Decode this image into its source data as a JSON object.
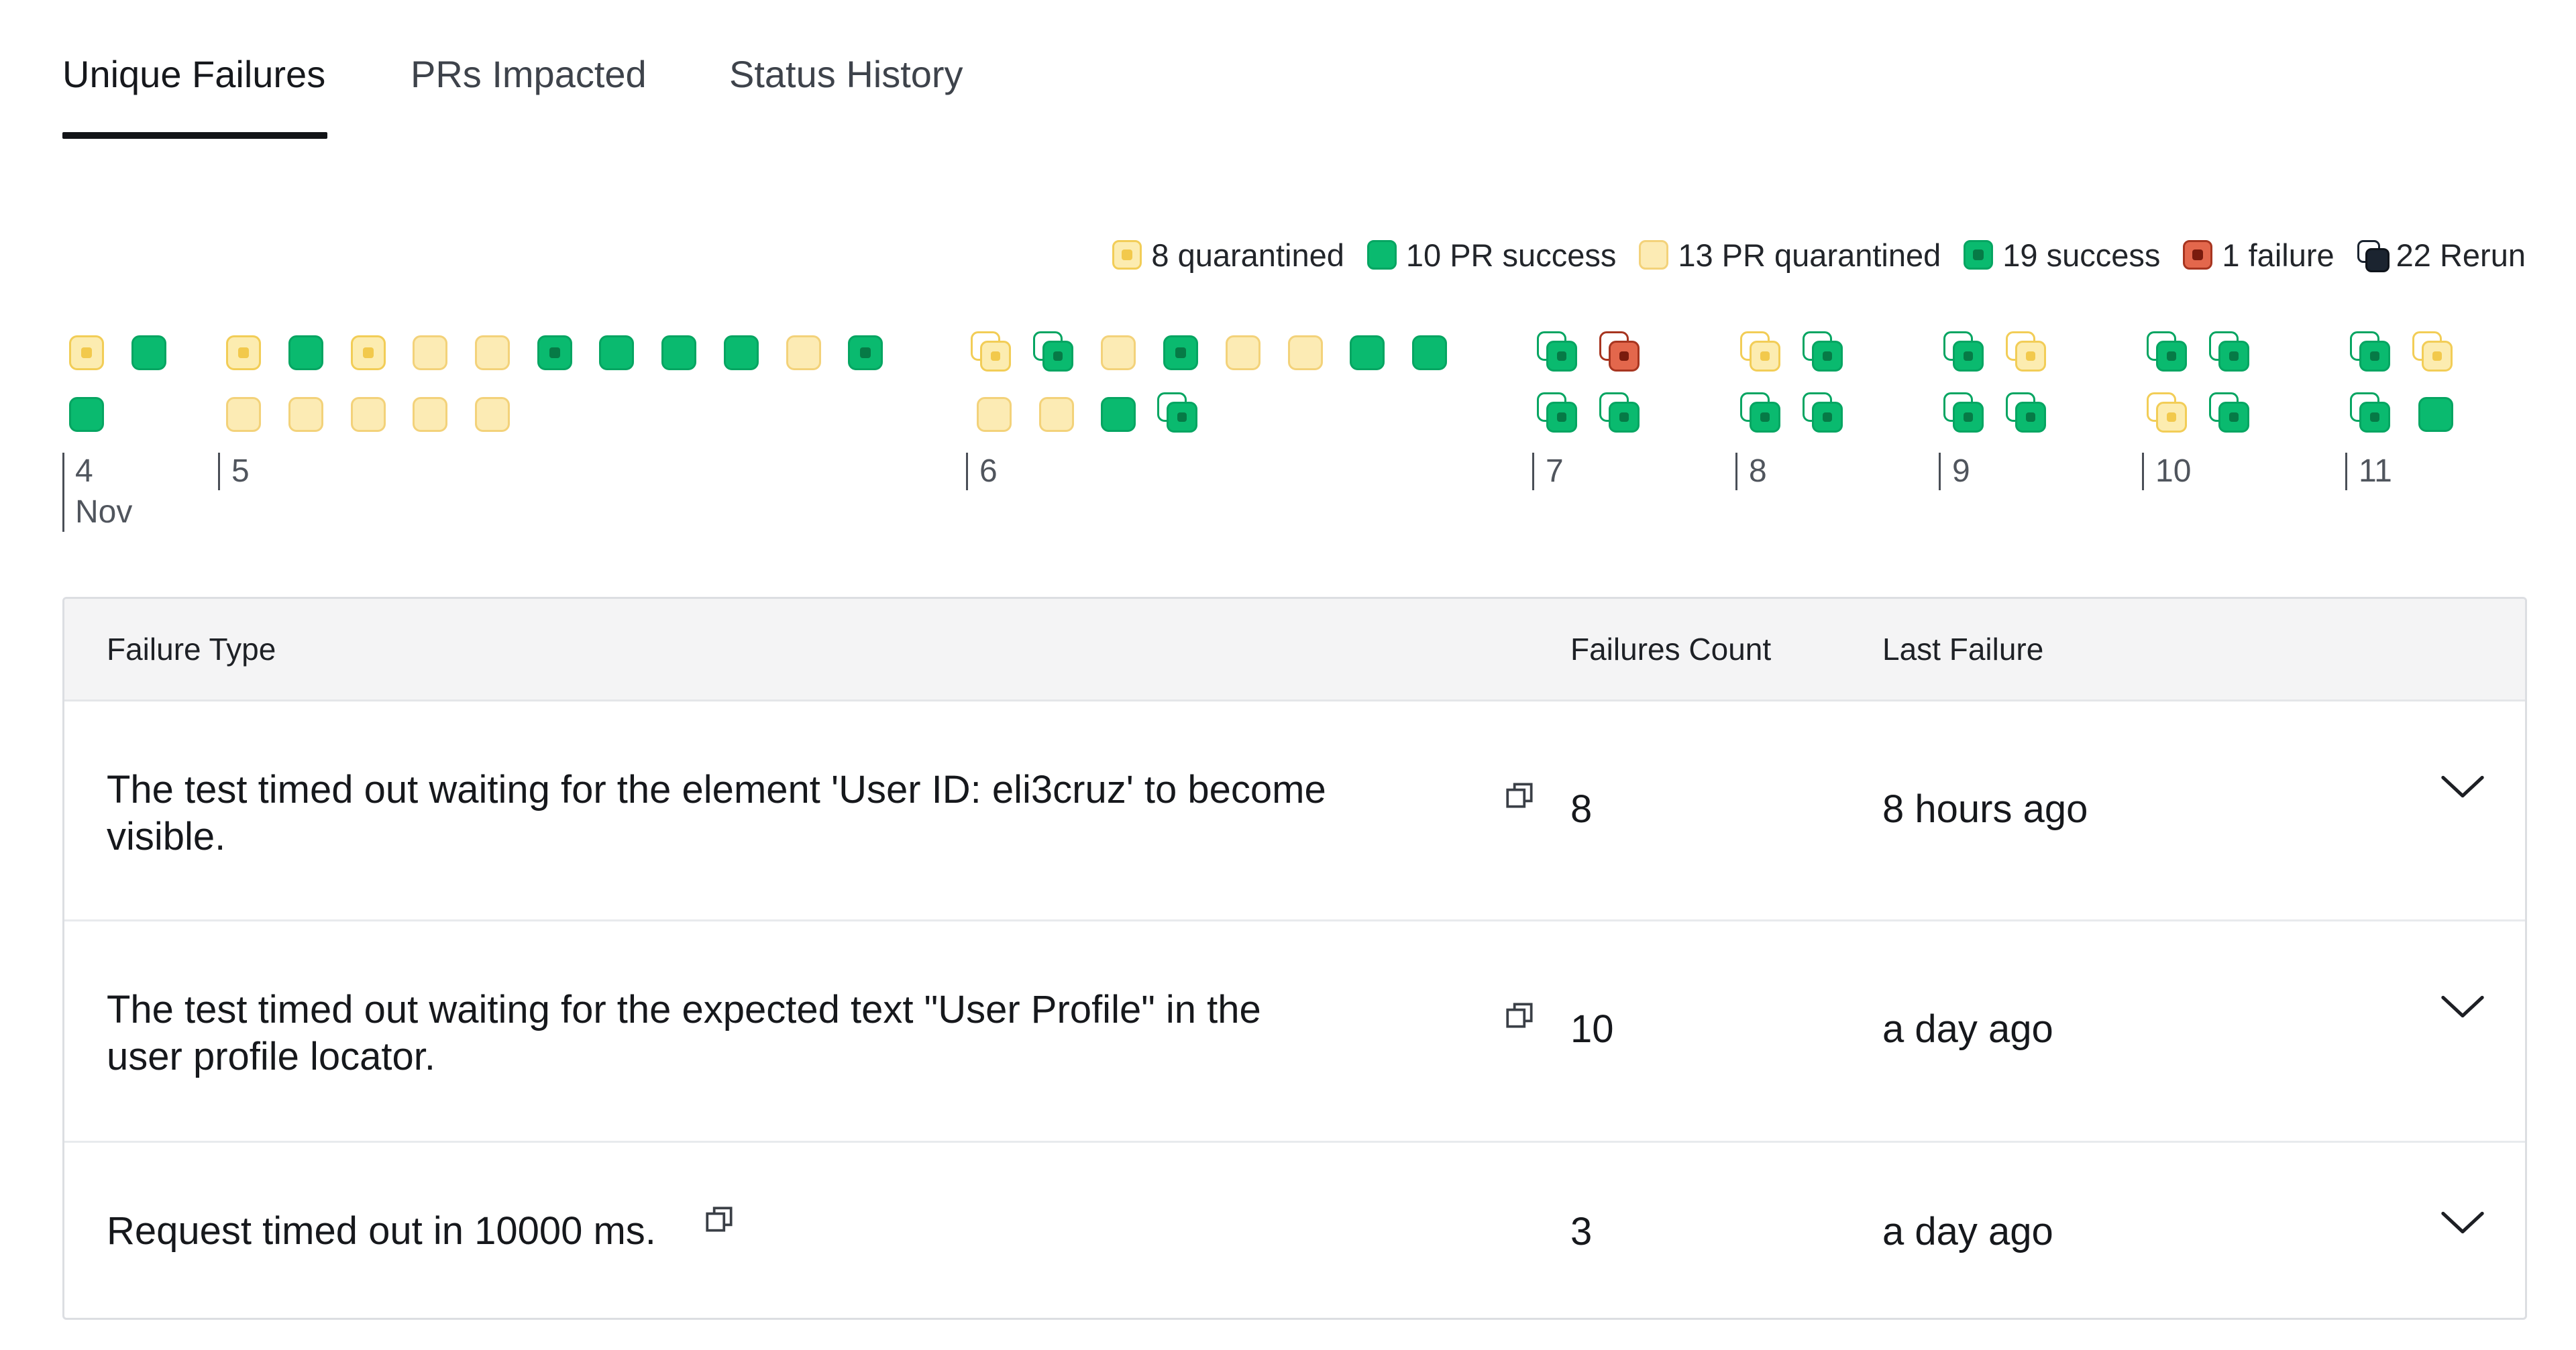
{
  "tabs": [
    {
      "label": "Unique Failures",
      "active": true
    },
    {
      "label": "PRs Impacted",
      "active": false
    },
    {
      "label": "Status History",
      "active": false
    }
  ],
  "legend": [
    {
      "kind": "quarantined",
      "label": "8 quarantined"
    },
    {
      "kind": "pr-success",
      "label": "10 PR success"
    },
    {
      "kind": "pr-quarantined",
      "label": "13 PR quarantined"
    },
    {
      "kind": "success",
      "label": "19 success"
    },
    {
      "kind": "failure",
      "label": "1 failure"
    },
    {
      "kind": "rerun",
      "label": "22 Rerun"
    }
  ],
  "timeline": {
    "days": [
      {
        "day": "4",
        "month": "Nov"
      },
      {
        "day": "5"
      },
      {
        "day": "6"
      },
      {
        "day": "7"
      },
      {
        "day": "8"
      },
      {
        "day": "9"
      },
      {
        "day": "10"
      },
      {
        "day": "11"
      }
    ],
    "status_colors": {
      "quarantined": "#F2C94C",
      "pr_success": "#0ABA6F",
      "failure": "#E3674C",
      "rerun": "#1B2430"
    }
  },
  "table": {
    "headers": {
      "type": "Failure Type",
      "count": "Failures Count",
      "last": "Last Failure"
    },
    "rows": [
      {
        "type_line1": "The test timed out waiting for the element 'User ID: eli3cruz' to become",
        "type_line2": "visible.",
        "count": "8",
        "last": "8 hours ago"
      },
      {
        "type_line1": "The test timed out waiting for the expected text \"User Profile\" in the",
        "type_line2": "user profile locator.",
        "count": "10",
        "last": "a day ago"
      },
      {
        "type_line1": "Request timed out in 10000 ms.",
        "type_line2": "",
        "count": "3",
        "last": "a day ago"
      }
    ]
  },
  "icons": {
    "copy": "copy-icon",
    "expand": "chevron-down-icon"
  }
}
